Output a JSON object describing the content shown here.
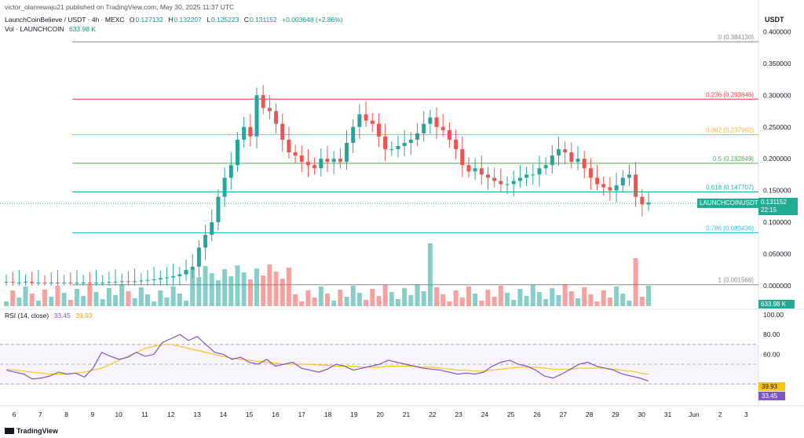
{
  "header": {
    "published": "victor_olanrewaju21 published on TradingView.com, May 30, 2025 11:37 UTC",
    "symbol": "LaunchCoinBelieve / USDT · 4h · MEXC",
    "o_label": "O",
    "o_value": "0.127132",
    "h_label": "H",
    "h_value": "0.132207",
    "l_label": "L",
    "l_value": "0.125223",
    "c_label": "C",
    "c_value": "0.131152",
    "change": "+0.003648 (+2.86%)",
    "vol_label": "Vol · LAUNCHCOIN",
    "vol_value": "633.98 K"
  },
  "price_axis": {
    "currency": "USDT",
    "ticks": [
      "0.400000",
      "0.350000",
      "0.300000",
      "0.250000",
      "0.200000",
      "0.150000",
      "0.100000",
      "0.050000",
      "0.000000"
    ]
  },
  "fib_levels": [
    {
      "label": "0 (0.384130)",
      "value": 0.38413,
      "color": "#888888"
    },
    {
      "label": "0.236 (0.293846)",
      "value": 0.293846,
      "color": "#f23645"
    },
    {
      "label": "0.382 (0.237992)",
      "value": 0.237992,
      "color": "#f5b12e"
    },
    {
      "label": "0.5 (0.192849)",
      "value": 0.192849,
      "color": "#4caf50"
    },
    {
      "label": "0.618 (0.147707)",
      "value": 0.147707,
      "color": "#22ab94"
    },
    {
      "label": "0.786 (0.083436)",
      "value": 0.083436,
      "color": "#26c6da"
    },
    {
      "label": "1 (0.001568)",
      "value": 0.001568,
      "color": "#888888"
    }
  ],
  "price_badge": {
    "symbol": "LAUNCHCOINUSDT",
    "price": "0.131152",
    "countdown": "22:15"
  },
  "volume_badge": "633.98 K",
  "rsi": {
    "label": "RSI (14, close)",
    "value": "33.45",
    "ma_value": "39.93",
    "ticks": [
      "100.00",
      "80.00",
      "60.00"
    ]
  },
  "x_axis": {
    "labels": [
      "6",
      "7",
      "8",
      "9",
      "10",
      "11",
      "12",
      "13",
      "14",
      "15",
      "16",
      "17",
      "18",
      "19",
      "20",
      "21",
      "22",
      "23",
      "24",
      "25",
      "26",
      "27",
      "28",
      "29",
      "30",
      "31",
      "Jun",
      "2",
      "3"
    ]
  },
  "footer": {
    "brand": "TradingView"
  },
  "colors": {
    "up": "#26a69a",
    "down": "#ef5350",
    "rsi": "#7e57c2",
    "rsi_ma": "#f7c31a"
  }
}
